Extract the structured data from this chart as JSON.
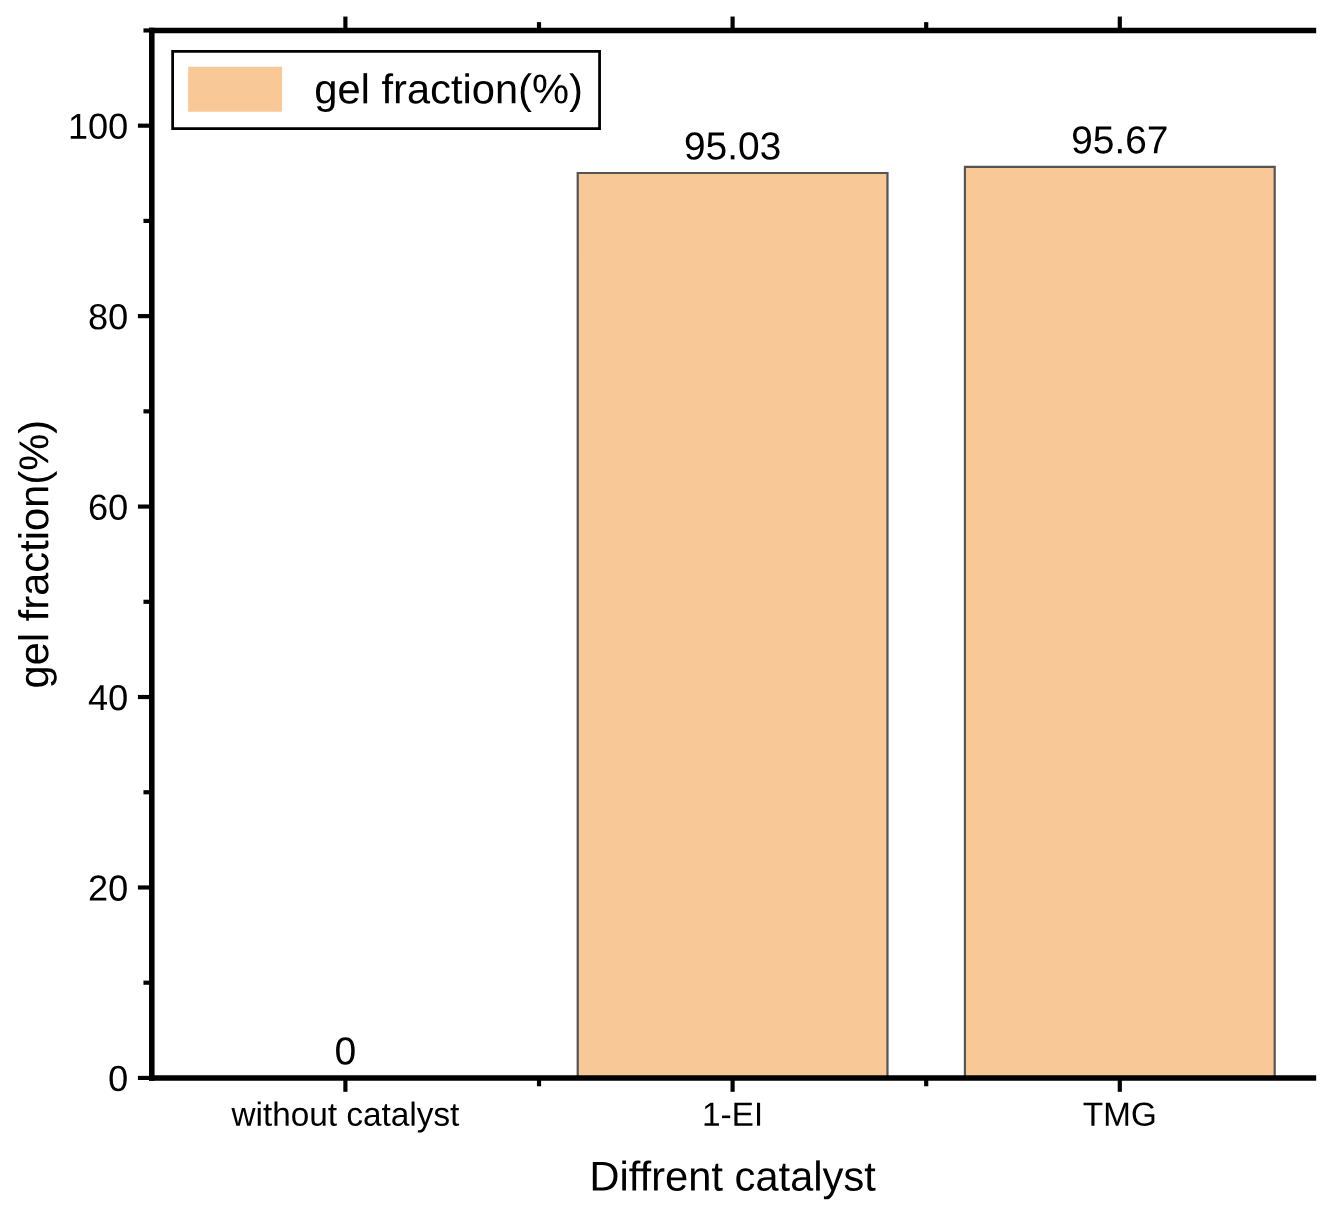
{
  "chart_data": {
    "type": "bar",
    "xlabel": "Diffrent catalyst",
    "ylabel": "gel fraction(%)",
    "categories": [
      "without catalyst",
      "1-EI",
      "TMG"
    ],
    "series": [
      {
        "name": "gel fraction(%)",
        "color": "#f9c897",
        "values": [
          0,
          95.03,
          95.67
        ]
      }
    ],
    "data_labels": true,
    "ylim": [
      0,
      110
    ],
    "yticks": [
      0,
      20,
      40,
      60,
      80,
      100
    ],
    "grid": false,
    "legend": "top left"
  }
}
